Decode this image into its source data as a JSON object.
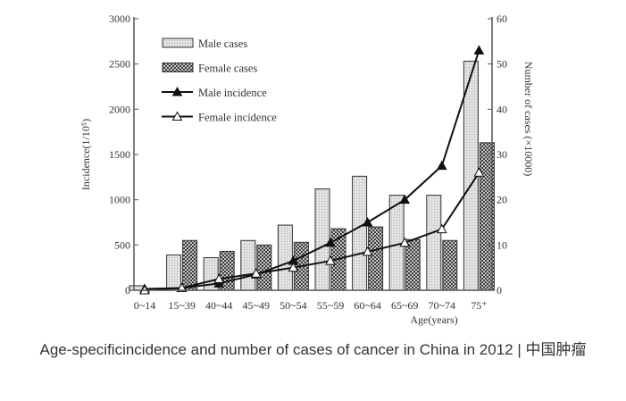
{
  "chart_data": {
    "type": "bar",
    "categories": [
      "0~14",
      "15~39",
      "40~44",
      "45~49",
      "50~54",
      "55~59",
      "60~64",
      "65~69",
      "70~74",
      "75⁺"
    ],
    "xlabel": "Age(years)",
    "ylabel": "Incidence(1/10⁵)",
    "y2label": "Number of cases  (×10000)",
    "ylim": [
      0,
      3000
    ],
    "y2lim": [
      0,
      60
    ],
    "yticks": [
      "0",
      "500",
      "1000",
      "1500",
      "2000",
      "2500",
      "3000"
    ],
    "y2ticks": [
      "0",
      "10",
      "20",
      "30",
      "40",
      "50",
      "60"
    ],
    "grid": false,
    "legend_position": "top-left",
    "series": [
      {
        "name": "Male cases",
        "kind": "bar",
        "axis": "right",
        "values": [
          1.0,
          7.8,
          7.2,
          11.0,
          14.4,
          22.4,
          25.2,
          21.0,
          21.0,
          50.6
        ]
      },
      {
        "name": "Female cases",
        "kind": "bar",
        "axis": "right",
        "values": [
          0.2,
          11.0,
          8.6,
          10.0,
          10.6,
          13.6,
          14.0,
          11.2,
          11.0,
          32.6
        ]
      },
      {
        "name": "Male incidence",
        "kind": "line",
        "marker": "filled-triangle",
        "axis": "left",
        "values": [
          15,
          25,
          75,
          175,
          325,
          525,
          750,
          1000,
          1375,
          2650
        ]
      },
      {
        "name": "Female incidence",
        "kind": "line",
        "marker": "open-triangle",
        "axis": "left",
        "values": [
          0,
          25,
          125,
          185,
          250,
          325,
          425,
          525,
          675,
          1300
        ]
      }
    ]
  },
  "caption": "Age-specificincidence and number of cases of cancer in China in 2012 | 中国肿瘤"
}
